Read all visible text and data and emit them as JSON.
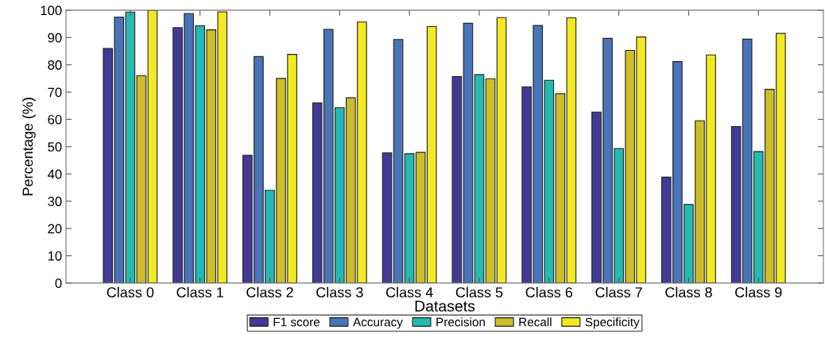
{
  "chart_data": {
    "type": "bar",
    "xlabel": "Datasets",
    "ylabel": "Percentage (%)",
    "categories": [
      "Class 0",
      "Class 1",
      "Class 2",
      "Class 3",
      "Class 4",
      "Class 5",
      "Class 6",
      "Class 7",
      "Class 8",
      "Class 9"
    ],
    "series": [
      {
        "name": "F1 score",
        "color": "#423a96",
        "values": [
          86,
          93.6,
          46.8,
          66,
          47.7,
          75.7,
          71.9,
          62.7,
          38.8,
          57.4
        ]
      },
      {
        "name": "Accuracy",
        "color": "#4a74b8",
        "values": [
          97.5,
          98.8,
          83,
          93,
          89.3,
          95.2,
          94.4,
          89.7,
          81.2,
          89.4
        ]
      },
      {
        "name": "Precision",
        "color": "#25bab1",
        "values": [
          99.3,
          94.3,
          34,
          64.3,
          47.4,
          76.4,
          74.3,
          49.3,
          28.8,
          48.2
        ]
      },
      {
        "name": "Recall",
        "color": "#cdbd2a",
        "values": [
          76,
          92.8,
          75,
          67.9,
          47.9,
          74.9,
          69.4,
          85.3,
          59.5,
          71
        ]
      },
      {
        "name": "Specificity",
        "color": "#f2e923",
        "values": [
          100,
          99.4,
          83.8,
          95.7,
          94,
          97.3,
          97.2,
          90.2,
          83.6,
          91.5
        ]
      }
    ],
    "ylim": [
      0,
      100
    ],
    "yticks": [
      0,
      10,
      20,
      30,
      40,
      50,
      60,
      70,
      80,
      90,
      100
    ],
    "grid": false,
    "legend": "bottom"
  }
}
